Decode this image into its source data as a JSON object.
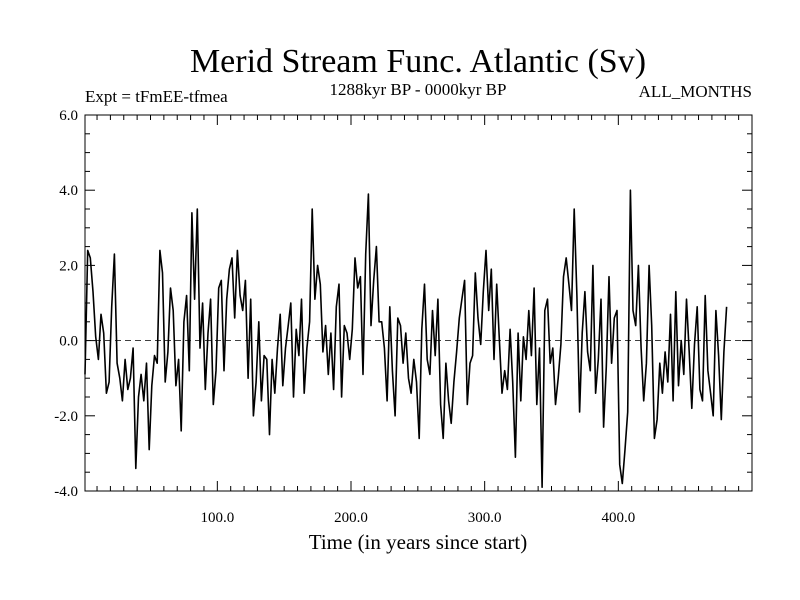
{
  "chart_data": {
    "type": "line",
    "title": "Merid Stream Func. Atlantic (Sv)",
    "expt_label": "Expt = tFmEE-tfmea",
    "time_range_label": "1288kyr BP - 0000kyr BP",
    "months_label": "ALL_MONTHS",
    "xlabel": "Time (in years since start)",
    "ylabel": "",
    "xlim": [
      1,
      500
    ],
    "ylim": [
      -4.0,
      6.0
    ],
    "xticks": [
      100,
      200,
      300,
      400
    ],
    "xtick_labels": [
      "100.0",
      "200.0",
      "300.0",
      "400.0"
    ],
    "yticks": [
      -4,
      -2,
      0,
      2,
      4,
      6
    ],
    "ytick_labels": [
      "-4.0",
      "-2.0",
      "0.0",
      "2.0",
      "4.0",
      "6.0"
    ],
    "zero_line": true,
    "colors": {
      "line": "#000000",
      "axis": "#000000",
      "background": "#ffffff"
    },
    "series": [
      {
        "name": "Merid Stream Func. Atlantic",
        "x_start": 1,
        "x_step": 2,
        "values": [
          -0.9,
          2.4,
          2.2,
          1.3,
          0.1,
          -0.5,
          0.7,
          0.2,
          -1.4,
          -1.1,
          0.9,
          2.3,
          -0.6,
          -1.0,
          -1.6,
          -0.5,
          -1.3,
          -1.0,
          -0.2,
          -3.4,
          -1.5,
          -0.9,
          -1.6,
          -0.6,
          -2.9,
          -1.2,
          -0.4,
          -0.6,
          2.4,
          1.8,
          -1.1,
          -0.3,
          1.4,
          0.8,
          -1.2,
          -0.5,
          -2.4,
          0.5,
          1.2,
          -0.8,
          3.4,
          1.1,
          3.5,
          -0.2,
          1.0,
          -1.3,
          0.2,
          1.1,
          -1.7,
          -0.8,
          1.4,
          1.6,
          -0.8,
          1.1,
          1.9,
          2.2,
          0.6,
          2.4,
          1.2,
          0.8,
          1.6,
          -1.0,
          1.1,
          -2.0,
          -1.1,
          0.5,
          -1.6,
          -0.4,
          -0.5,
          -2.5,
          -0.5,
          -1.4,
          -0.2,
          0.7,
          -1.2,
          -0.2,
          0.4,
          1.0,
          -1.5,
          0.3,
          -0.4,
          1.1,
          -1.4,
          -0.2,
          0.5,
          3.5,
          1.1,
          2.0,
          1.5,
          -0.3,
          0.4,
          -0.9,
          0.2,
          -1.3,
          0.9,
          1.5,
          -1.5,
          0.4,
          0.2,
          -0.5,
          0.3,
          2.2,
          1.4,
          1.7,
          -0.9,
          2.3,
          3.9,
          0.4,
          1.6,
          2.5,
          0.5,
          0.5,
          -0.2,
          -1.6,
          0.9,
          -0.8,
          -2.0,
          0.6,
          0.4,
          -0.6,
          0.2,
          -1.0,
          -1.4,
          -0.5,
          -1.1,
          -2.6,
          0.3,
          1.5,
          -0.5,
          -0.9,
          0.8,
          -0.4,
          1.1,
          -1.7,
          -2.6,
          -0.6,
          -1.6,
          -2.2,
          -1.1,
          -0.3,
          0.6,
          1.1,
          1.6,
          -1.7,
          -0.6,
          -0.4,
          1.8,
          0.6,
          -0.1,
          1.3,
          2.4,
          0.8,
          1.9,
          -0.5,
          1.5,
          0.0,
          -1.4,
          -0.8,
          -1.3,
          0.3,
          -1.1,
          -3.1,
          0.2,
          -1.6,
          0.1,
          -0.5,
          0.8,
          -0.4,
          1.4,
          -1.7,
          -0.2,
          -3.9,
          0.8,
          1.1,
          -0.6,
          -0.2,
          -1.7,
          -1.0,
          -0.1,
          1.7,
          2.2,
          1.5,
          0.8,
          3.5,
          1.2,
          -1.9,
          0.2,
          1.3,
          -0.3,
          -0.8,
          2.0,
          -1.4,
          -0.5,
          1.1,
          -2.3,
          -0.7,
          1.7,
          -0.6,
          0.6,
          0.8,
          -3.3,
          -3.8,
          -2.9,
          -1.9,
          4.0,
          0.8,
          0.4,
          2.0,
          -0.2,
          -1.6,
          -0.6,
          2.0,
          0.4,
          -2.6,
          -2.1,
          -0.6,
          -1.4,
          -0.3,
          -1.1,
          0.7,
          -1.6,
          1.3,
          -1.2,
          0.0,
          -0.9,
          1.1,
          -0.3,
          -1.8,
          -0.1,
          0.9,
          -1.3,
          -1.6,
          1.2,
          -0.8,
          -1.4,
          -2.0,
          0.8,
          -0.4,
          -2.1,
          -0.3,
          0.9
        ]
      }
    ]
  }
}
